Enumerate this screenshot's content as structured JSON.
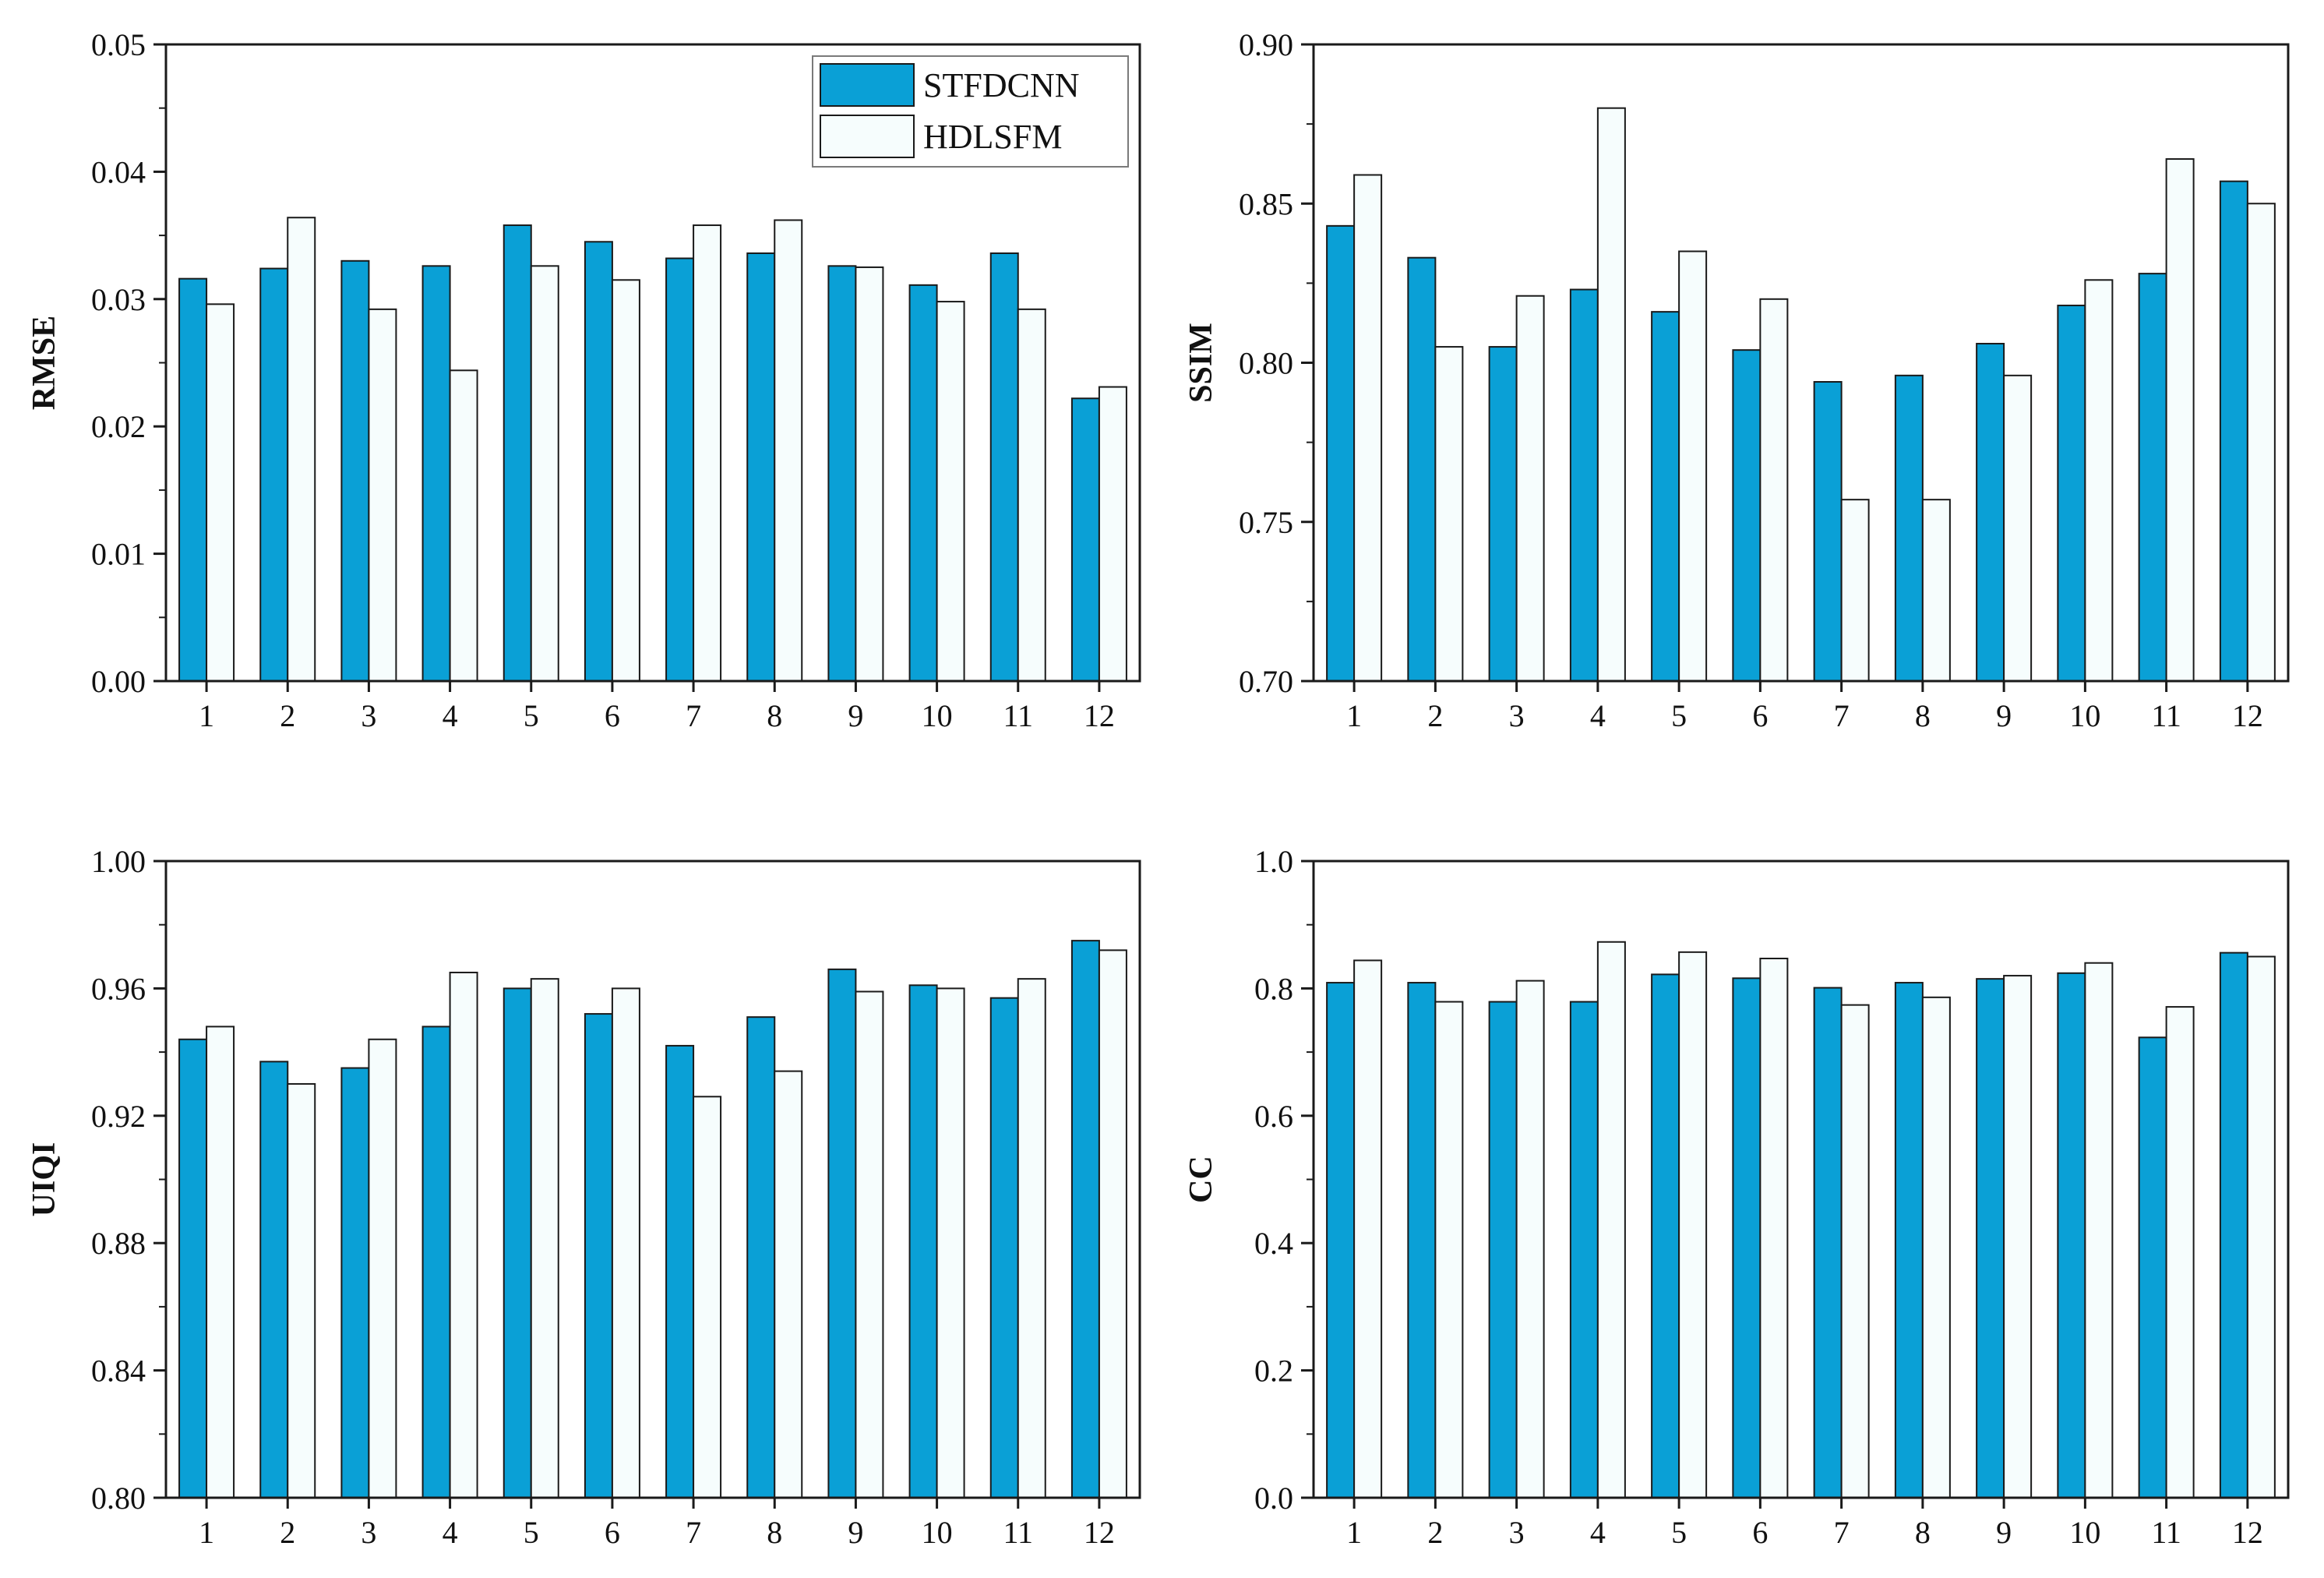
{
  "colors": {
    "series_fills": [
      "#0aa0d6",
      "#f6fdfd"
    ],
    "bar_stroke": "#1a1a1a",
    "axis": "#1a1a1a"
  },
  "legend": {
    "entries": [
      "STFDCNN",
      "HDLSFM"
    ],
    "placement": "top-right",
    "panel": 0
  },
  "chart_data": [
    {
      "type": "bar",
      "title": "",
      "xlabel": "",
      "ylabel": "RMSE",
      "categories": [
        "1",
        "2",
        "3",
        "4",
        "5",
        "6",
        "7",
        "8",
        "9",
        "10",
        "11",
        "12"
      ],
      "ylim": [
        0,
        0.05
      ],
      "yticks": [
        0.0,
        0.01,
        0.02,
        0.03,
        0.04,
        0.05
      ],
      "ytick_labels": [
        "0.00",
        "0.01",
        "0.02",
        "0.03",
        "0.04",
        "0.05"
      ],
      "grid": false,
      "series": [
        {
          "name": "STFDCNN",
          "values": [
            0.0316,
            0.0324,
            0.033,
            0.0326,
            0.0358,
            0.0345,
            0.0332,
            0.0336,
            0.0326,
            0.0311,
            0.0336,
            0.0222
          ]
        },
        {
          "name": "HDLSFM",
          "values": [
            0.0296,
            0.0364,
            0.0292,
            0.0244,
            0.0326,
            0.0315,
            0.0358,
            0.0362,
            0.0325,
            0.0298,
            0.0292,
            0.0231
          ]
        }
      ]
    },
    {
      "type": "bar",
      "title": "",
      "xlabel": "",
      "ylabel": "SSIM",
      "categories": [
        "1",
        "2",
        "3",
        "4",
        "5",
        "6",
        "7",
        "8",
        "9",
        "10",
        "11",
        "12"
      ],
      "ylim": [
        0.7,
        0.9
      ],
      "yticks": [
        0.7,
        0.75,
        0.8,
        0.85,
        0.9
      ],
      "ytick_labels": [
        "0.70",
        "0.75",
        "0.80",
        "0.85",
        "0.90"
      ],
      "grid": false,
      "series": [
        {
          "name": "STFDCNN",
          "values": [
            0.843,
            0.833,
            0.805,
            0.823,
            0.816,
            0.804,
            0.794,
            0.796,
            0.806,
            0.818,
            0.828,
            0.857
          ]
        },
        {
          "name": "HDLSFM",
          "values": [
            0.859,
            0.805,
            0.821,
            0.88,
            0.835,
            0.82,
            0.757,
            0.757,
            0.796,
            0.826,
            0.864,
            0.85
          ]
        }
      ]
    },
    {
      "type": "bar",
      "title": "",
      "xlabel": "",
      "ylabel": "UIQI",
      "categories": [
        "1",
        "2",
        "3",
        "4",
        "5",
        "6",
        "7",
        "8",
        "9",
        "10",
        "11",
        "12"
      ],
      "ylim": [
        0.8,
        1.0
      ],
      "yticks": [
        0.8,
        0.84,
        0.88,
        0.92,
        0.96,
        1.0
      ],
      "ytick_labels": [
        "0.80",
        "0.84",
        "0.88",
        "0.92",
        "0.96",
        "1.00"
      ],
      "grid": false,
      "series": [
        {
          "name": "STFDCNN",
          "values": [
            0.944,
            0.937,
            0.935,
            0.948,
            0.96,
            0.952,
            0.942,
            0.951,
            0.966,
            0.961,
            0.957,
            0.975
          ]
        },
        {
          "name": "HDLSFM",
          "values": [
            0.948,
            0.93,
            0.944,
            0.965,
            0.963,
            0.96,
            0.926,
            0.934,
            0.959,
            0.96,
            0.963,
            0.972
          ]
        }
      ]
    },
    {
      "type": "bar",
      "title": "",
      "xlabel": "",
      "ylabel": "CC",
      "categories": [
        "1",
        "2",
        "3",
        "4",
        "5",
        "6",
        "7",
        "8",
        "9",
        "10",
        "11",
        "12"
      ],
      "ylim": [
        0.0,
        1.0
      ],
      "yticks": [
        0.0,
        0.2,
        0.4,
        0.6,
        0.8,
        1.0
      ],
      "ytick_labels": [
        "0.0",
        "0.2",
        "0.4",
        "0.6",
        "0.8",
        "1.0"
      ],
      "grid": false,
      "series": [
        {
          "name": "STFDCNN",
          "values": [
            0.809,
            0.809,
            0.779,
            0.779,
            0.822,
            0.816,
            0.801,
            0.809,
            0.815,
            0.824,
            0.723,
            0.856
          ]
        },
        {
          "name": "HDLSFM",
          "values": [
            0.844,
            0.779,
            0.812,
            0.873,
            0.857,
            0.847,
            0.774,
            0.786,
            0.82,
            0.84,
            0.771,
            0.85
          ]
        }
      ]
    }
  ]
}
